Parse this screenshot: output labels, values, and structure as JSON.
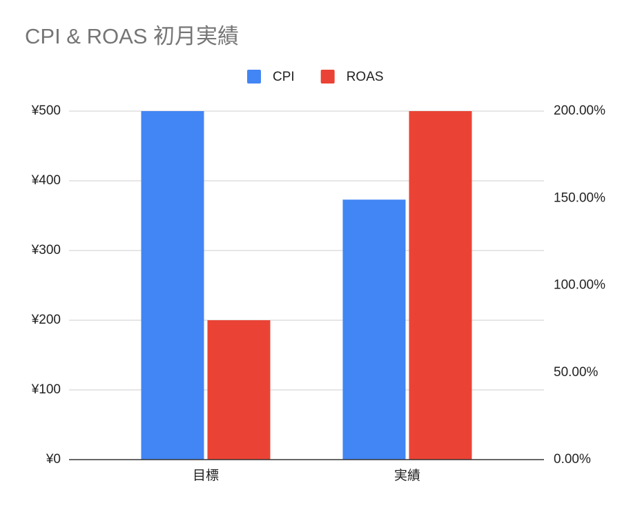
{
  "chart_data": {
    "type": "bar",
    "title": "CPI & ROAS 初月実績",
    "categories": [
      "目標",
      "実績"
    ],
    "series": [
      {
        "name": "CPI",
        "color": "#4285f4",
        "values": [
          500,
          373
        ]
      },
      {
        "name": "ROAS",
        "color": "#ea4335",
        "values": [
          80,
          200
        ],
        "axis": "y2"
      }
    ],
    "ylim": [
      0,
      500
    ],
    "yticks": [
      {
        "value": 0,
        "label": "¥0"
      },
      {
        "value": 100,
        "label": "¥100"
      },
      {
        "value": 200,
        "label": "¥200"
      },
      {
        "value": 300,
        "label": "¥300"
      },
      {
        "value": 400,
        "label": "¥400"
      },
      {
        "value": 500,
        "label": "¥500"
      }
    ],
    "y2lim": [
      0,
      200
    ],
    "y2ticks": [
      {
        "value": 0,
        "label": "0.00%"
      },
      {
        "value": 50,
        "label": "50.00%"
      },
      {
        "value": 100,
        "label": "100.00%"
      },
      {
        "value": 150,
        "label": "150.00%"
      },
      {
        "value": 200,
        "label": "200.00%"
      }
    ],
    "grid": true,
    "legend": "top"
  }
}
